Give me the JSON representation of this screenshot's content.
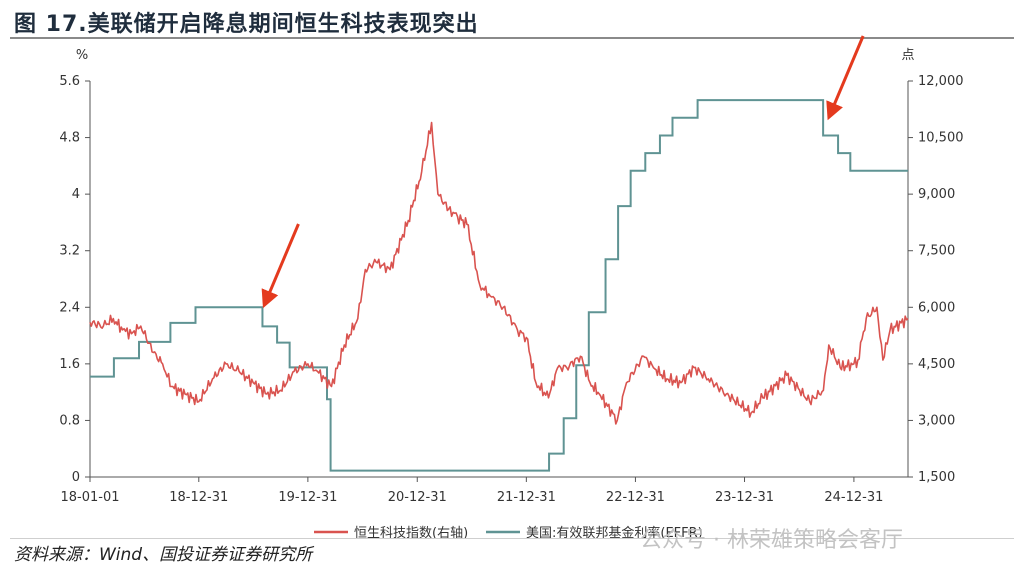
{
  "title": "图 17.美联储开启降息期间恒生科技表现突出",
  "source": "资料来源：Wind、国投证券证券研究所",
  "watermark": "公众号 · 林荣雄策略会客厅",
  "chart_data": {
    "type": "line",
    "x_tick_labels": [
      "18-01-01",
      "18-12-31",
      "19-12-31",
      "20-12-31",
      "21-12-31",
      "22-12-31",
      "23-12-31",
      "24-12-31"
    ],
    "x_range": [
      "2018-01-01",
      "2025-06-30"
    ],
    "left_axis": {
      "unit": "%",
      "ylim": [
        0,
        5.6
      ],
      "ticks": [
        "0",
        "0.8",
        "1.6",
        "2.4",
        "3.2",
        "4",
        "4.8",
        "5.6"
      ]
    },
    "right_axis": {
      "unit": "点",
      "ylim": [
        1500,
        12000
      ],
      "ticks": [
        "1,500",
        "3,000",
        "4,500",
        "6,000",
        "7,500",
        "9,000",
        "10,500",
        "12,000"
      ]
    },
    "legend_position": "bottom",
    "colors": {
      "hstech": "#d9534f",
      "effr": "#5f9393"
    },
    "series": [
      {
        "name": "恒生科技指数(右轴)",
        "axis": "right",
        "x": [
          "2018-01-01",
          "2018-02-15",
          "2018-03-20",
          "2018-04-20",
          "2018-05-20",
          "2018-06-20",
          "2018-08-01",
          "2018-09-01",
          "2018-10-01",
          "2018-11-15",
          "2018-12-31",
          "2019-02-15",
          "2019-04-01",
          "2019-05-15",
          "2019-07-01",
          "2019-08-15",
          "2019-10-01",
          "2019-11-15",
          "2019-12-31",
          "2020-02-01",
          "2020-03-19",
          "2020-05-01",
          "2020-06-15",
          "2020-07-10",
          "2020-08-15",
          "2020-10-01",
          "2020-12-01",
          "2021-01-15",
          "2021-02-17",
          "2021-03-10",
          "2021-04-15",
          "2021-05-15",
          "2021-06-15",
          "2021-07-28",
          "2021-09-01",
          "2021-10-15",
          "2021-12-01",
          "2021-12-31",
          "2022-02-01",
          "2022-03-15",
          "2022-04-15",
          "2022-05-15",
          "2022-06-30",
          "2022-08-01",
          "2022-09-01",
          "2022-10-31",
          "2022-12-01",
          "2023-01-27",
          "2023-03-01",
          "2023-04-15",
          "2023-06-01",
          "2023-07-15",
          "2023-09-01",
          "2023-10-31",
          "2024-01-22",
          "2024-03-01",
          "2024-05-20",
          "2024-08-05",
          "2024-09-20",
          "2024-10-08",
          "2024-11-15",
          "2024-12-31",
          "2025-01-13",
          "2025-02-10",
          "2025-03-18",
          "2025-04-07",
          "2025-05-01",
          "2025-06-30"
        ],
        "values": [
          5600,
          5500,
          5700,
          5400,
          5300,
          5500,
          4800,
          4500,
          3900,
          3700,
          3500,
          4100,
          4500,
          4300,
          4000,
          3700,
          3800,
          4300,
          4500,
          4300,
          3900,
          5000,
          5700,
          7000,
          7200,
          7000,
          8300,
          9600,
          10900,
          9000,
          8600,
          8400,
          8200,
          6600,
          6300,
          6000,
          5400,
          5200,
          4000,
          3600,
          4400,
          4400,
          4700,
          4000,
          3700,
          3000,
          4000,
          4700,
          4400,
          4100,
          4000,
          4400,
          4100,
          3700,
          3200,
          3600,
          4200,
          3500,
          3800,
          5000,
          4400,
          4500,
          4600,
          5700,
          6000,
          4600,
          5400,
          5700
        ]
      },
      {
        "name": "美国:有效联邦基金利率(EFFR)",
        "axis": "left",
        "x": [
          "2018-01-01",
          "2018-03-22",
          "2018-06-14",
          "2018-09-27",
          "2018-12-20",
          "2019-08-01",
          "2019-09-19",
          "2019-10-31",
          "2020-03-04",
          "2020-03-16",
          "2022-03-17",
          "2022-05-05",
          "2022-06-16",
          "2022-07-28",
          "2022-09-22",
          "2022-11-03",
          "2022-12-15",
          "2023-02-02",
          "2023-03-23",
          "2023-05-04",
          "2023-07-27",
          "2024-09-19",
          "2024-11-08",
          "2024-12-19",
          "2025-06-30"
        ],
        "values": [
          1.42,
          1.68,
          1.91,
          2.18,
          2.4,
          2.13,
          1.9,
          1.55,
          1.1,
          0.09,
          0.33,
          0.83,
          1.58,
          2.33,
          3.08,
          3.83,
          4.33,
          4.58,
          4.83,
          5.08,
          5.33,
          4.83,
          4.58,
          4.33,
          4.33
        ]
      }
    ],
    "annotations": [
      {
        "type": "arrow",
        "date": "2019-08-01",
        "meaning": "Fed rate cut start 2019"
      },
      {
        "type": "arrow",
        "date": "2024-09-19",
        "meaning": "Fed rate cut start 2024"
      }
    ]
  }
}
